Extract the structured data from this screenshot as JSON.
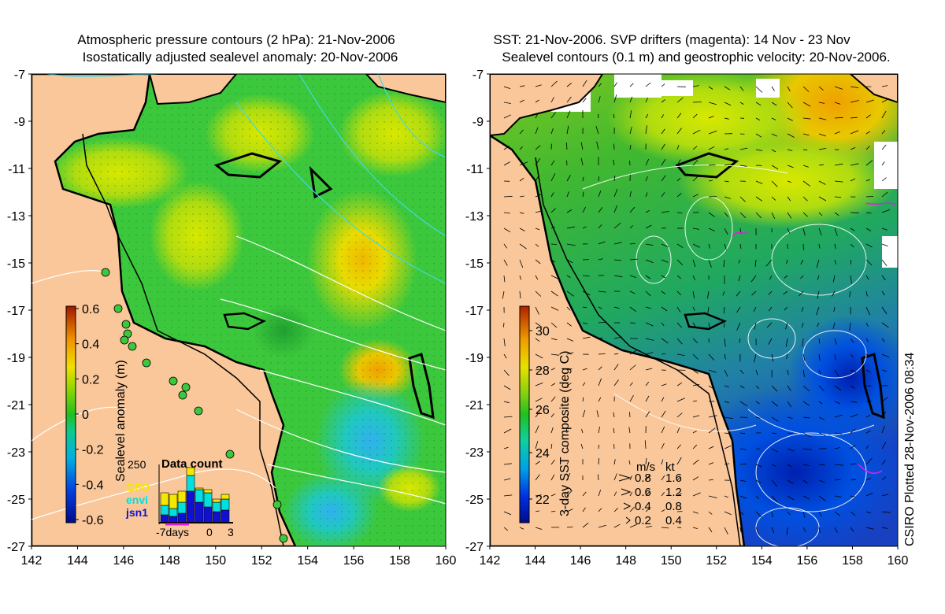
{
  "left_panel": {
    "title_line1": "Atmospheric pressure contours (2 hPa): 21-Nov-2006",
    "title_line2": "Isostatically adjusted sealevel anomaly: 20-Nov-2006",
    "colorbar": {
      "label": "Sealevel anomaly (m)",
      "ticks": [
        "0.6",
        "0.4",
        "0.2",
        "0",
        "-0.2",
        "-0.4",
        "-0.6"
      ]
    },
    "inset": {
      "title": "Data count",
      "ytick": "250",
      "legend": [
        {
          "label": "GFO",
          "color": "#f4e800"
        },
        {
          "label": "envi",
          "color": "#00e0e0"
        },
        {
          "label": "jsn1",
          "color": "#1010d0"
        }
      ],
      "xlabels": [
        "-7days",
        "0",
        "3"
      ]
    }
  },
  "right_panel": {
    "title_line1": "SST: 21-Nov-2006. SVP drifters (magenta): 14 Nov - 23 Nov",
    "title_line2": "Sealevel contours (0.1 m) and geostrophic velocity: 20-Nov-2006.",
    "colorbar": {
      "label": "3-day SST composite (deg C)",
      "ticks": [
        "30",
        "28",
        "26",
        "24",
        "22"
      ]
    },
    "speed_legend": {
      "header": [
        "m/s",
        "kt"
      ],
      "rows": [
        [
          "0.8",
          "1.6"
        ],
        [
          "0.6",
          "1.2"
        ],
        [
          "0.4",
          "0.8"
        ],
        [
          "0.2",
          "0.4"
        ]
      ]
    }
  },
  "axes": {
    "y_ticks": [
      "-7",
      "-9",
      "-11",
      "-13",
      "-15",
      "-17",
      "-19",
      "-21",
      "-23",
      "-25",
      "-27"
    ],
    "x_ticks": [
      "142",
      "144",
      "146",
      "148",
      "150",
      "152",
      "154",
      "156",
      "158",
      "160"
    ]
  },
  "credit": "CSIRO Plotted 28-Nov-2006 08:34",
  "colors": {
    "land": "#f9c79a",
    "ocean_green": "#3cc83c",
    "contour_white": "#ffffff",
    "contour_cyan": "#40d8e8",
    "drifter_magenta": "#e020e0"
  }
}
